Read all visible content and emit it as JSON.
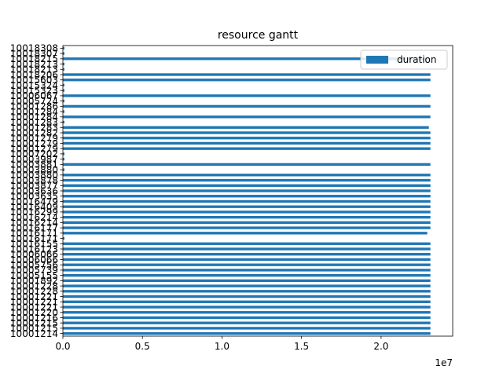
{
  "chart_data": {
    "type": "bar",
    "orientation": "horizontal",
    "title": "resource gantt",
    "xlabel": "",
    "ylabel": "",
    "x_offset_label": "1e7",
    "xlim": [
      0,
      2.45
    ],
    "xticks": [
      0.0,
      0.5,
      1.0,
      1.5,
      2.0
    ],
    "xtick_labels": [
      "0.0",
      "0.5",
      "1.0",
      "1.5",
      "2.0"
    ],
    "legend": {
      "position": "top-right",
      "entries": [
        "duration"
      ]
    },
    "colors": {
      "bar": "#1f77b4",
      "axis": "#000000",
      "legend_border": "#cccccc"
    },
    "categories": [
      "10001214",
      "10001215",
      "10001215",
      "10001216",
      "10001220",
      "10001221",
      "10001221",
      "10001221",
      "10001228",
      "10001228",
      "10001892",
      "10005155",
      "10005739",
      "10005756",
      "10006066",
      "10006066",
      "10016123",
      "10016155",
      "10016171",
      "10016171",
      "10016177",
      "10016214",
      "10016214",
      "10016299",
      "10016409",
      "10016479",
      "10003635",
      "10003636",
      "10003877",
      "10003878",
      "10003880",
      "10003880",
      "10003881",
      "10003987",
      "10007202",
      "10001279",
      "10001279",
      "10001279",
      "10001282",
      "10001283",
      "10001283",
      "10001284",
      "10001284",
      "10001286",
      "10005724",
      "10006067",
      "10015323",
      "10015324",
      "10015603",
      "10018206",
      "10018213",
      "10018213",
      "10018215",
      "10018307",
      "10018308"
    ],
    "values": [
      2.31,
      2.31,
      2.31,
      2.31,
      2.31,
      2.31,
      2.31,
      2.31,
      2.31,
      2.31,
      2.31,
      2.31,
      2.31,
      2.31,
      2.31,
      2.31,
      2.31,
      2.31,
      0.01,
      2.29,
      2.31,
      2.31,
      2.31,
      2.31,
      2.31,
      2.31,
      2.31,
      2.31,
      2.31,
      2.31,
      2.31,
      0.01,
      2.31,
      0.01,
      0.01,
      2.31,
      2.31,
      2.31,
      2.31,
      2.3,
      0.01,
      2.31,
      0.01,
      2.31,
      0.01,
      2.31,
      0.01,
      0.01,
      2.31,
      2.31,
      0.01,
      0.01,
      2.31,
      0.01,
      0.01
    ]
  }
}
